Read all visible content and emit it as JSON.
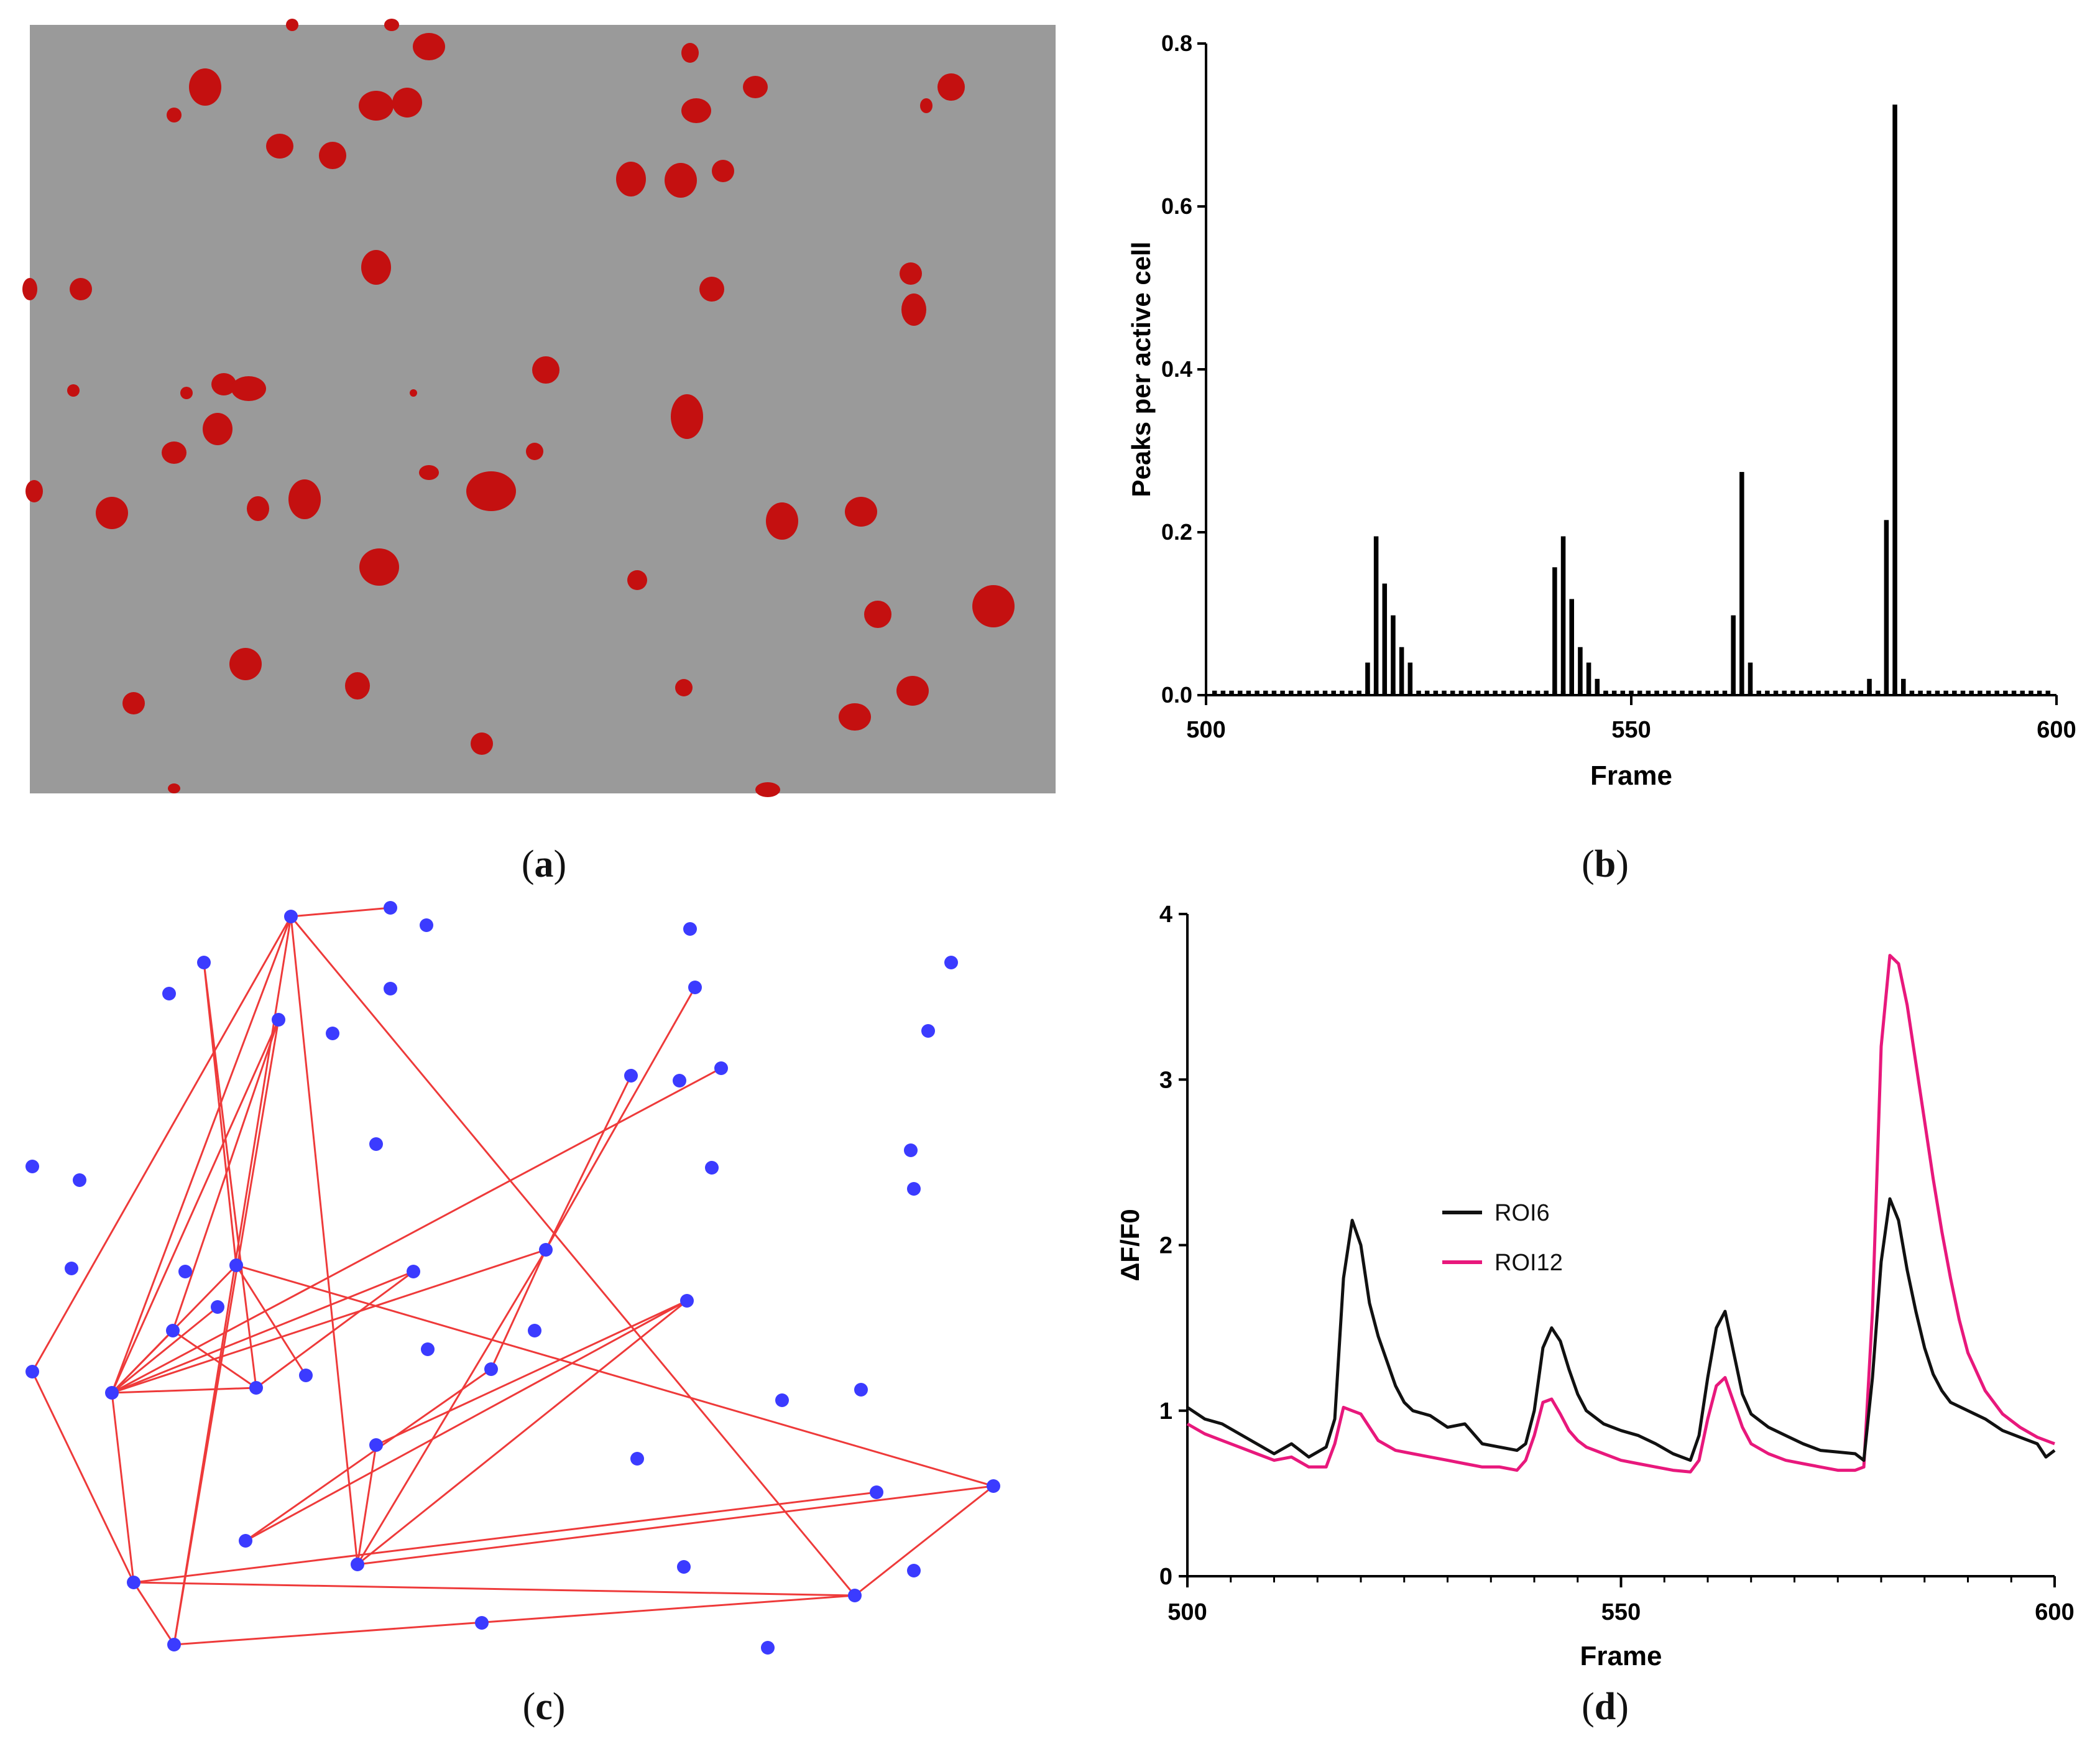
{
  "captions": {
    "a": "a",
    "b": "b",
    "c": "c",
    "d": "d"
  },
  "colors": {
    "cell_fill": "#c41010",
    "background_gray": "#9a9a9a",
    "node": "#3b3bff",
    "edge": "#ee3a3a",
    "roi6": "#111111",
    "roi12": "#e8187c",
    "bar": "#000000"
  },
  "chart_data": [
    {
      "panel": "b",
      "type": "bar",
      "title": "",
      "xlabel": "Frame",
      "ylabel": "Peaks per active cell",
      "xlim": [
        500,
        600
      ],
      "ylim": [
        0,
        0.8
      ],
      "xticks": [
        500,
        550,
        600
      ],
      "yticks": [
        "0.0",
        "0.2",
        "0.4",
        "0.6",
        "0.8"
      ],
      "baseline": 0.004,
      "x": [
        519,
        520,
        521,
        522,
        523,
        524,
        541,
        542,
        543,
        544,
        545,
        546,
        547,
        562,
        563,
        564,
        578,
        580,
        581,
        582
      ],
      "values": [
        0.04,
        0.195,
        0.137,
        0.098,
        0.059,
        0.04,
        0.157,
        0.195,
        0.118,
        0.059,
        0.04,
        0.02,
        0.004,
        0.098,
        0.274,
        0.04,
        0.02,
        0.215,
        0.725,
        0.02
      ]
    },
    {
      "panel": "d",
      "type": "line",
      "title": "",
      "xlabel": "Frame",
      "ylabel": "ΔF/F0",
      "xlim": [
        500,
        600
      ],
      "ylim": [
        0,
        4
      ],
      "xticks": [
        500,
        550,
        600
      ],
      "yticks": [
        "0",
        "1",
        "2",
        "3",
        "4"
      ],
      "legend_position": "center-left",
      "series": [
        {
          "name": "ROI6",
          "color": "#111111",
          "points": [
            [
              500,
              1.02
            ],
            [
              502,
              0.95
            ],
            [
              504,
              0.92
            ],
            [
              506,
              0.86
            ],
            [
              508,
              0.8
            ],
            [
              510,
              0.74
            ],
            [
              512,
              0.8
            ],
            [
              514,
              0.72
            ],
            [
              516,
              0.78
            ],
            [
              517,
              0.95
            ],
            [
              518,
              1.8
            ],
            [
              519,
              2.15
            ],
            [
              520,
              2.0
            ],
            [
              521,
              1.65
            ],
            [
              522,
              1.45
            ],
            [
              523,
              1.3
            ],
            [
              524,
              1.15
            ],
            [
              525,
              1.05
            ],
            [
              526,
              1.0
            ],
            [
              528,
              0.97
            ],
            [
              530,
              0.9
            ],
            [
              532,
              0.92
            ],
            [
              534,
              0.8
            ],
            [
              536,
              0.78
            ],
            [
              538,
              0.76
            ],
            [
              539,
              0.8
            ],
            [
              540,
              1.0
            ],
            [
              541,
              1.38
            ],
            [
              542,
              1.5
            ],
            [
              543,
              1.42
            ],
            [
              544,
              1.25
            ],
            [
              545,
              1.1
            ],
            [
              546,
              1.0
            ],
            [
              548,
              0.92
            ],
            [
              550,
              0.88
            ],
            [
              552,
              0.85
            ],
            [
              554,
              0.8
            ],
            [
              556,
              0.74
            ],
            [
              558,
              0.7
            ],
            [
              559,
              0.85
            ],
            [
              560,
              1.2
            ],
            [
              561,
              1.5
            ],
            [
              562,
              1.6
            ],
            [
              563,
              1.35
            ],
            [
              564,
              1.1
            ],
            [
              565,
              0.98
            ],
            [
              567,
              0.9
            ],
            [
              569,
              0.85
            ],
            [
              571,
              0.8
            ],
            [
              573,
              0.76
            ],
            [
              575,
              0.75
            ],
            [
              577,
              0.74
            ],
            [
              578,
              0.7
            ],
            [
              579,
              1.2
            ],
            [
              580,
              1.9
            ],
            [
              581,
              2.28
            ],
            [
              582,
              2.15
            ],
            [
              583,
              1.85
            ],
            [
              584,
              1.6
            ],
            [
              585,
              1.38
            ],
            [
              586,
              1.22
            ],
            [
              587,
              1.12
            ],
            [
              588,
              1.05
            ],
            [
              590,
              1.0
            ],
            [
              592,
              0.95
            ],
            [
              594,
              0.88
            ],
            [
              596,
              0.84
            ],
            [
              598,
              0.8
            ],
            [
              599,
              0.72
            ],
            [
              600,
              0.76
            ]
          ]
        },
        {
          "name": "ROI12",
          "color": "#e8187c",
          "points": [
            [
              500,
              0.92
            ],
            [
              502,
              0.86
            ],
            [
              504,
              0.82
            ],
            [
              506,
              0.78
            ],
            [
              508,
              0.74
            ],
            [
              510,
              0.7
            ],
            [
              512,
              0.72
            ],
            [
              514,
              0.66
            ],
            [
              516,
              0.66
            ],
            [
              517,
              0.8
            ],
            [
              518,
              1.02
            ],
            [
              519,
              1.0
            ],
            [
              520,
              0.98
            ],
            [
              521,
              0.9
            ],
            [
              522,
              0.82
            ],
            [
              524,
              0.76
            ],
            [
              526,
              0.74
            ],
            [
              528,
              0.72
            ],
            [
              530,
              0.7
            ],
            [
              532,
              0.68
            ],
            [
              534,
              0.66
            ],
            [
              536,
              0.66
            ],
            [
              538,
              0.64
            ],
            [
              539,
              0.7
            ],
            [
              540,
              0.85
            ],
            [
              541,
              1.05
            ],
            [
              542,
              1.07
            ],
            [
              543,
              0.98
            ],
            [
              544,
              0.88
            ],
            [
              545,
              0.82
            ],
            [
              546,
              0.78
            ],
            [
              548,
              0.74
            ],
            [
              550,
              0.7
            ],
            [
              552,
              0.68
            ],
            [
              554,
              0.66
            ],
            [
              556,
              0.64
            ],
            [
              558,
              0.63
            ],
            [
              559,
              0.7
            ],
            [
              560,
              0.95
            ],
            [
              561,
              1.15
            ],
            [
              562,
              1.2
            ],
            [
              563,
              1.05
            ],
            [
              564,
              0.9
            ],
            [
              565,
              0.8
            ],
            [
              567,
              0.74
            ],
            [
              569,
              0.7
            ],
            [
              571,
              0.68
            ],
            [
              573,
              0.66
            ],
            [
              575,
              0.64
            ],
            [
              577,
              0.64
            ],
            [
              578,
              0.66
            ],
            [
              579,
              1.6
            ],
            [
              580,
              3.2
            ],
            [
              581,
              3.75
            ],
            [
              582,
              3.7
            ],
            [
              583,
              3.45
            ],
            [
              584,
              3.1
            ],
            [
              585,
              2.75
            ],
            [
              586,
              2.4
            ],
            [
              587,
              2.08
            ],
            [
              588,
              1.8
            ],
            [
              589,
              1.55
            ],
            [
              590,
              1.35
            ],
            [
              592,
              1.12
            ],
            [
              594,
              0.98
            ],
            [
              596,
              0.9
            ],
            [
              598,
              0.84
            ],
            [
              600,
              0.8
            ]
          ]
        }
      ]
    }
  ]
}
